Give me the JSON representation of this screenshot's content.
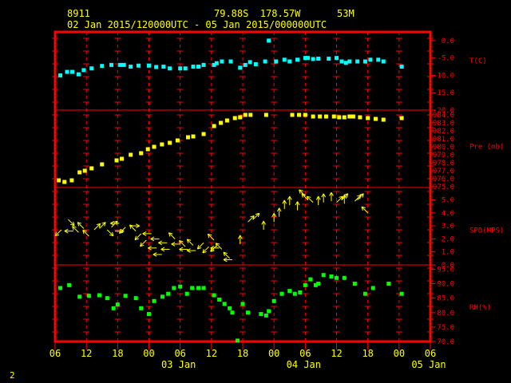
{
  "header": {
    "station": "8911",
    "coords": "79.88S  178.57W",
    "elevation": "53M",
    "daterange": "02 Jan 2015/120000UTC - 05 Jan 2015/000000UTC"
  },
  "page_number": "2",
  "colors": {
    "frame": "#ff0000",
    "temperature": "#00ffff",
    "pressure": "#ffff00",
    "wind": "#ffff00",
    "rh": "#00ff00",
    "text": "#ffff00"
  },
  "chart_data": {
    "type": "scatter",
    "x_ticks_hours": [
      "06",
      "12",
      "18",
      "00",
      "06",
      "12",
      "18",
      "00",
      "06",
      "12",
      "18",
      "00",
      "06"
    ],
    "x_days": [
      "03 Jan",
      "04 Jan",
      "05 Jan"
    ],
    "x_range_hours_since_02Jan06Z": [
      0,
      72
    ],
    "panels": [
      {
        "name": "T(C)",
        "ticks": [
          "0.0",
          "-5.0",
          "-10.0",
          "-15.0",
          "-20.0"
        ],
        "ylim": [
          -20,
          2.5
        ],
        "points": [
          [
            1.0,
            -10
          ],
          [
            2.3,
            -9
          ],
          [
            3.3,
            -9
          ],
          [
            4.5,
            -9.7
          ],
          [
            5.5,
            -8.5
          ],
          [
            7,
            -8
          ],
          [
            9,
            -7.3
          ],
          [
            10.8,
            -7
          ],
          [
            12.5,
            -7
          ],
          [
            13.2,
            -7
          ],
          [
            14.5,
            -7.5
          ],
          [
            16,
            -7.2
          ],
          [
            18,
            -7.2
          ],
          [
            19.4,
            -7.6
          ],
          [
            20.8,
            -7.5
          ],
          [
            22,
            -8
          ],
          [
            24,
            -8
          ],
          [
            25,
            -8
          ],
          [
            26.5,
            -7.5
          ],
          [
            27.5,
            -7.5
          ],
          [
            28.5,
            -7
          ],
          [
            30.5,
            -7
          ],
          [
            31,
            -6.5
          ],
          [
            32,
            -6
          ],
          [
            33.7,
            -6
          ],
          [
            35.5,
            -7.8
          ],
          [
            36.5,
            -7
          ],
          [
            37.4,
            -6.2
          ],
          [
            38.5,
            -6.8
          ],
          [
            40.3,
            -6
          ],
          [
            41,
            0
          ],
          [
            42.4,
            -6
          ],
          [
            44,
            -5.5
          ],
          [
            45,
            -6
          ],
          [
            46.5,
            -5.5
          ],
          [
            48,
            -5
          ],
          [
            48.5,
            -5
          ],
          [
            49.5,
            -5.3
          ],
          [
            50.5,
            -5.2
          ],
          [
            52.5,
            -5.2
          ],
          [
            54,
            -5
          ],
          [
            55,
            -6
          ],
          [
            55.8,
            -6.4
          ],
          [
            56.5,
            -6
          ],
          [
            58,
            -6
          ],
          [
            59.5,
            -6
          ],
          [
            60.5,
            -5.5
          ],
          [
            62,
            -5.5
          ],
          [
            63,
            -6
          ],
          [
            66.5,
            -7.5
          ]
        ]
      },
      {
        "name": "Pre (mb)",
        "ticks": [
          "984.0",
          "983.0",
          "982.0",
          "981.0",
          "980.0",
          "979.0",
          "978.0",
          "977.0",
          "976.0",
          "975.0"
        ],
        "ylim": [
          974.9,
          984.6
        ],
        "points": [
          [
            0.7,
            975.8
          ],
          [
            1.8,
            975.6
          ],
          [
            3.2,
            975.8
          ],
          [
            4.7,
            976.8
          ],
          [
            5.7,
            977
          ],
          [
            7,
            977.3
          ],
          [
            9,
            977.8
          ],
          [
            11.8,
            978.3
          ],
          [
            12.8,
            978.5
          ],
          [
            14.5,
            979
          ],
          [
            16.5,
            979.2
          ],
          [
            17.8,
            979.7
          ],
          [
            19,
            980
          ],
          [
            20.5,
            980.3
          ],
          [
            22,
            980.5
          ],
          [
            23.5,
            980.8
          ],
          [
            25.5,
            981.2
          ],
          [
            26.5,
            981.3
          ],
          [
            28.5,
            981.6
          ],
          [
            30.5,
            982.6
          ],
          [
            31.8,
            983
          ],
          [
            33,
            983.3
          ],
          [
            34.5,
            983.6
          ],
          [
            35.5,
            983.7
          ],
          [
            36.5,
            984
          ],
          [
            37.5,
            984
          ],
          [
            40.5,
            984
          ],
          [
            45.5,
            984
          ],
          [
            46.8,
            984
          ],
          [
            48,
            984
          ],
          [
            49.5,
            983.8
          ],
          [
            50.8,
            983.8
          ],
          [
            52,
            983.8
          ],
          [
            53.5,
            983.8
          ],
          [
            54.5,
            983.7
          ],
          [
            55.5,
            983.7
          ],
          [
            56.5,
            983.8
          ],
          [
            57.2,
            983.8
          ],
          [
            58.5,
            983.7
          ],
          [
            60,
            983.6
          ],
          [
            61.5,
            983.5
          ],
          [
            63,
            983.4
          ],
          [
            66.5,
            983.6
          ]
        ]
      },
      {
        "name": "SPD(MPS)",
        "ticks": [
          "5.0",
          "4.0",
          "3.0",
          "2.0",
          "1.0",
          "0.0"
        ],
        "ylim": [
          0,
          5.95
        ],
        "barbs": [
          [
            1.2,
            2.7,
            "sw"
          ],
          [
            2.5,
            3.5,
            "se"
          ],
          [
            3.5,
            2.6,
            "w"
          ],
          [
            4.5,
            2.5,
            "nw"
          ],
          [
            5.5,
            2.8,
            "nw"
          ],
          [
            6.5,
            2.2,
            "nw"
          ],
          [
            7.5,
            2.7,
            "ne"
          ],
          [
            8.5,
            2.8,
            "ne"
          ],
          [
            10,
            2.7,
            "se"
          ],
          [
            10.8,
            2.9,
            "ne"
          ],
          [
            11.5,
            2.6,
            "e"
          ],
          [
            12.3,
            3.2,
            "w"
          ],
          [
            13.5,
            2.9,
            "sw"
          ],
          [
            14.5,
            3.0,
            "e"
          ],
          [
            15.5,
            2.6,
            "nw"
          ],
          [
            16.5,
            2.4,
            "sw"
          ],
          [
            17.5,
            1.9,
            "sw"
          ],
          [
            18.5,
            2.4,
            "w"
          ],
          [
            19.5,
            1.3,
            "w"
          ],
          [
            20,
            2.0,
            "w"
          ],
          [
            20.5,
            0.8,
            "w"
          ],
          [
            21.5,
            1.7,
            "w"
          ],
          [
            22,
            1.2,
            "w"
          ],
          [
            23,
            2.0,
            "nw"
          ],
          [
            24,
            1.6,
            "w"
          ],
          [
            25,
            1.4,
            "nw"
          ],
          [
            25.5,
            1.2,
            "w"
          ],
          [
            26.5,
            1.5,
            "nw"
          ],
          [
            27,
            1.1,
            "w"
          ],
          [
            28.5,
            1.7,
            "sw"
          ],
          [
            29.5,
            1.4,
            "sw"
          ],
          [
            30.5,
            1.9,
            "nw"
          ],
          [
            31,
            1.5,
            "sw"
          ],
          [
            31.5,
            1.3,
            "w"
          ],
          [
            32,
            1.2,
            "nw"
          ],
          [
            33.5,
            0.5,
            "nw"
          ],
          [
            34,
            0.4,
            "w"
          ],
          [
            35.5,
            1.6,
            "n"
          ],
          [
            37,
            3.3,
            "ne"
          ],
          [
            38,
            3.5,
            "ne"
          ],
          [
            40,
            2.7,
            "n"
          ],
          [
            42,
            3.3,
            "n"
          ],
          [
            43,
            3.7,
            "n"
          ],
          [
            44,
            4.3,
            "n"
          ],
          [
            45,
            4.6,
            "n"
          ],
          [
            46.5,
            4.2,
            "n"
          ],
          [
            48,
            5.3,
            "nw"
          ],
          [
            48.5,
            5.0,
            "nw"
          ],
          [
            49.5,
            4.8,
            "nw"
          ],
          [
            50.5,
            4.6,
            "n"
          ],
          [
            51.5,
            4.8,
            "n"
          ],
          [
            53,
            4.9,
            "n"
          ],
          [
            54,
            4.8,
            "ne"
          ],
          [
            55,
            5.0,
            "ne"
          ],
          [
            55.5,
            4.7,
            "n"
          ],
          [
            57.5,
            4.9,
            "ne"
          ],
          [
            58,
            5.0,
            "ne"
          ],
          [
            60,
            4.0,
            "nw"
          ]
        ]
      },
      {
        "name": "RH(%)",
        "ticks": [
          "95.0",
          "90.0",
          "85.0",
          "80.0",
          "75.0",
          "70.0"
        ],
        "ylim": [
          70,
          96.5
        ],
        "points": [
          [
            1.0,
            88.5
          ],
          [
            2.7,
            89.5
          ],
          [
            4.7,
            85.5
          ],
          [
            6.5,
            85.8
          ],
          [
            8.5,
            86
          ],
          [
            10,
            85
          ],
          [
            11.2,
            81.5
          ],
          [
            12,
            82.8
          ],
          [
            13.5,
            85.8
          ],
          [
            15.5,
            85
          ],
          [
            16.5,
            81.5
          ],
          [
            18,
            79.5
          ],
          [
            19,
            84
          ],
          [
            20.6,
            85.5
          ],
          [
            21.7,
            86.5
          ],
          [
            22.8,
            88.5
          ],
          [
            24,
            89
          ],
          [
            25.3,
            86.5
          ],
          [
            26.3,
            88.5
          ],
          [
            27.5,
            88.5
          ],
          [
            28.5,
            88.5
          ],
          [
            30.5,
            86
          ],
          [
            31.5,
            84.5
          ],
          [
            32.5,
            83
          ],
          [
            33.5,
            81.5
          ],
          [
            34,
            80
          ],
          [
            35,
            70.3
          ],
          [
            36,
            83
          ],
          [
            37,
            80
          ],
          [
            39.5,
            79.5
          ],
          [
            40.5,
            79
          ],
          [
            41,
            80.5
          ],
          [
            42,
            84
          ],
          [
            43.5,
            86.5
          ],
          [
            45,
            87.5
          ],
          [
            46,
            86.5
          ],
          [
            47,
            87
          ],
          [
            48,
            89.5
          ],
          [
            49,
            91.5
          ],
          [
            50,
            89.5
          ],
          [
            50.5,
            90
          ],
          [
            51.5,
            93
          ],
          [
            53,
            92.5
          ],
          [
            54,
            92
          ],
          [
            55.5,
            92
          ],
          [
            57.5,
            90
          ],
          [
            59.5,
            86.5
          ],
          [
            61,
            88.5
          ],
          [
            64,
            90
          ],
          [
            66.5,
            86.5
          ]
        ]
      }
    ]
  }
}
